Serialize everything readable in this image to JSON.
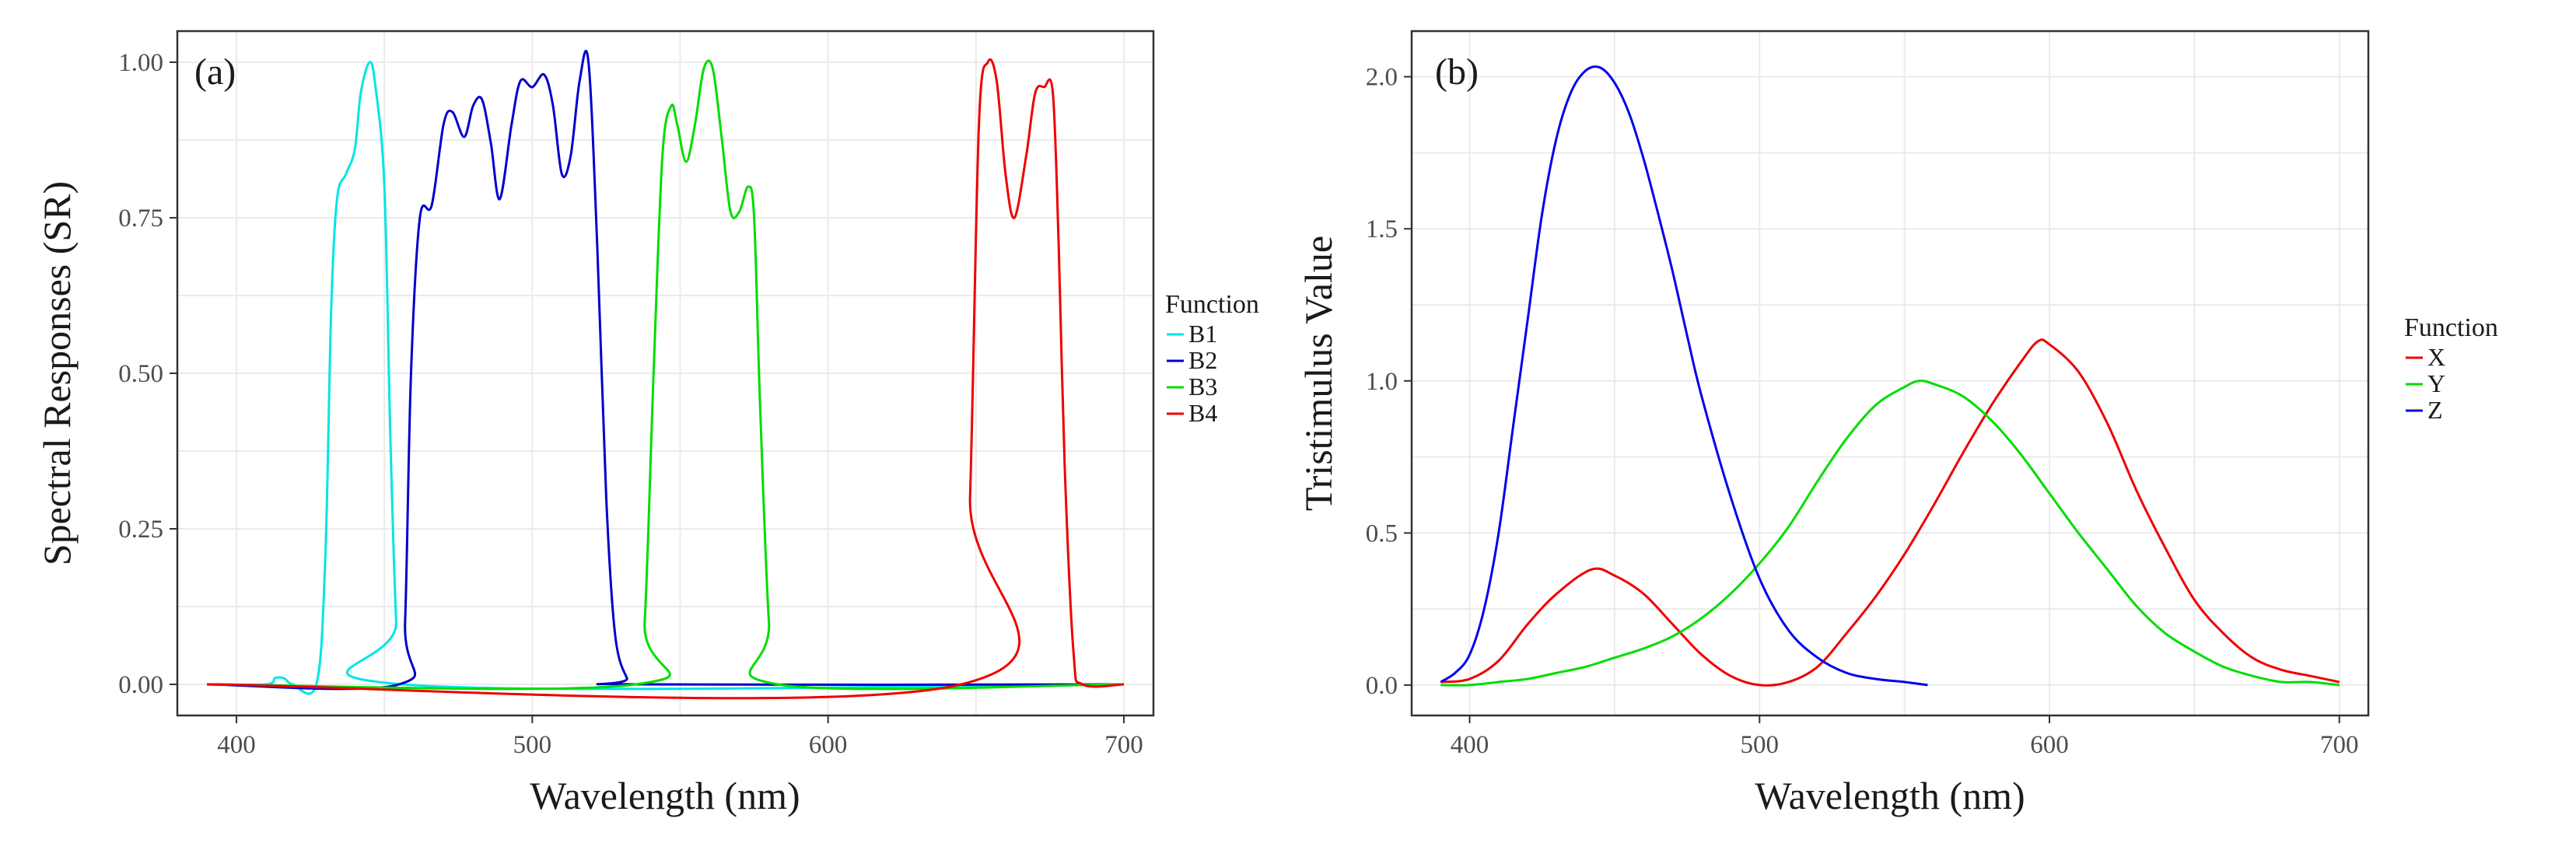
{
  "chart_data": [
    {
      "type": "line",
      "panel_label": "(a)",
      "xlabel": "Wavelength (nm)",
      "ylabel": "Spectral Responses (SR)",
      "xlim": [
        380,
        710
      ],
      "ylim": [
        -0.05,
        1.05
      ],
      "xticks": [
        400,
        500,
        600,
        700
      ],
      "xtick_labels": [
        "400",
        "500",
        "600",
        "700"
      ],
      "yticks": [
        0,
        0.25,
        0.5,
        0.75,
        1.0
      ],
      "ytick_labels": [
        "0.00",
        "0.25",
        "0.50",
        "0.75",
        "1.00"
      ],
      "legend": {
        "title": "Function",
        "position": "right"
      },
      "series": [
        {
          "name": "B1",
          "color": "#00e5e5",
          "x": [
            390,
            410,
            413,
            416,
            419,
            427,
            430,
            432,
            434,
            437,
            440,
            442,
            445,
            447,
            450,
            452,
            454,
            456,
            700
          ],
          "y": [
            0,
            0,
            0.01,
            0.01,
            0,
            0,
            0.2,
            0.6,
            0.78,
            0.82,
            0.86,
            0.95,
            1.0,
            0.96,
            0.8,
            0.4,
            0.1,
            0,
            0
          ]
        },
        {
          "name": "B2",
          "color": "#0000cc",
          "x": [
            390,
            455,
            457,
            459,
            462,
            466,
            470,
            473,
            477,
            480,
            483,
            486,
            489,
            493,
            496,
            500,
            504,
            507,
            510,
            513,
            516,
            519,
            522,
            525,
            528,
            532,
            535,
            700
          ],
          "y": [
            0,
            0,
            0.1,
            0.5,
            0.75,
            0.77,
            0.9,
            0.92,
            0.88,
            0.93,
            0.94,
            0.87,
            0.78,
            0.9,
            0.97,
            0.96,
            0.98,
            0.93,
            0.82,
            0.85,
            0.97,
            1.0,
            0.7,
            0.3,
            0.08,
            0.01,
            0,
            0
          ]
        },
        {
          "name": "B3",
          "color": "#00dd00",
          "x": [
            390,
            535,
            538,
            541,
            544,
            547,
            549,
            552,
            555,
            558,
            561,
            564,
            567,
            570,
            573,
            575,
            577,
            580,
            583,
            700
          ],
          "y": [
            0,
            0,
            0.1,
            0.5,
            0.85,
            0.93,
            0.9,
            0.84,
            0.9,
            0.99,
            0.99,
            0.88,
            0.76,
            0.76,
            0.8,
            0.75,
            0.45,
            0.1,
            0,
            0
          ]
        },
        {
          "name": "B4",
          "color": "#ee0000",
          "x": [
            390,
            645,
            648,
            651,
            654,
            657,
            660,
            663,
            667,
            670,
            673,
            676,
            678,
            680,
            683,
            686,
            700
          ],
          "y": [
            0,
            0,
            0.3,
            0.9,
            1.0,
            0.97,
            0.82,
            0.75,
            0.85,
            0.95,
            0.96,
            0.95,
            0.7,
            0.35,
            0.05,
            0,
            0
          ]
        }
      ]
    },
    {
      "type": "line",
      "panel_label": "(b)",
      "xlabel": "Wavelength (nm)",
      "ylabel": "Tristimulus Value",
      "xlim": [
        380,
        710
      ],
      "ylim": [
        -0.1,
        2.15
      ],
      "xticks": [
        400,
        500,
        600,
        700
      ],
      "xtick_labels": [
        "400",
        "500",
        "600",
        "700"
      ],
      "yticks": [
        0,
        0.5,
        1.0,
        1.5,
        2.0
      ],
      "ytick_labels": [
        "0.0",
        "0.5",
        "1.0",
        "1.5",
        "2.0"
      ],
      "legend": {
        "title": "Function",
        "position": "right"
      },
      "series": [
        {
          "name": "X",
          "color": "#ee0000",
          "x": [
            390,
            400,
            410,
            420,
            430,
            442,
            450,
            460,
            470,
            480,
            490,
            500,
            510,
            520,
            530,
            540,
            550,
            560,
            570,
            580,
            590,
            596,
            600,
            610,
            620,
            630,
            640,
            650,
            660,
            670,
            680,
            690,
            700
          ],
          "y": [
            0.01,
            0.02,
            0.08,
            0.2,
            0.3,
            0.38,
            0.36,
            0.3,
            0.2,
            0.1,
            0.03,
            0.0,
            0.01,
            0.06,
            0.17,
            0.29,
            0.43,
            0.59,
            0.76,
            0.92,
            1.06,
            1.13,
            1.12,
            1.03,
            0.86,
            0.64,
            0.45,
            0.28,
            0.17,
            0.09,
            0.05,
            0.03,
            0.01
          ]
        },
        {
          "name": "Y",
          "color": "#00dd00",
          "x": [
            390,
            400,
            410,
            420,
            430,
            440,
            450,
            460,
            470,
            480,
            490,
            500,
            510,
            520,
            530,
            540,
            550,
            555,
            560,
            570,
            580,
            590,
            600,
            610,
            620,
            630,
            640,
            650,
            660,
            670,
            680,
            690,
            700
          ],
          "y": [
            0.0,
            0.0,
            0.01,
            0.02,
            0.04,
            0.06,
            0.09,
            0.12,
            0.16,
            0.22,
            0.3,
            0.4,
            0.52,
            0.67,
            0.81,
            0.92,
            0.98,
            1.0,
            0.99,
            0.95,
            0.87,
            0.76,
            0.63,
            0.5,
            0.38,
            0.26,
            0.17,
            0.11,
            0.06,
            0.03,
            0.01,
            0.01,
            0.0
          ]
        },
        {
          "name": "Z",
          "color": "#0000ee",
          "x": [
            390,
            395,
            400,
            405,
            410,
            415,
            420,
            425,
            430,
            435,
            440,
            445,
            450,
            455,
            460,
            465,
            470,
            475,
            480,
            490,
            500,
            510,
            520,
            530,
            540,
            550,
            558
          ],
          "y": [
            0.01,
            0.04,
            0.1,
            0.25,
            0.5,
            0.85,
            1.2,
            1.55,
            1.8,
            1.95,
            2.02,
            2.03,
            1.98,
            1.88,
            1.73,
            1.55,
            1.36,
            1.15,
            0.95,
            0.62,
            0.35,
            0.18,
            0.09,
            0.04,
            0.02,
            0.01,
            0.0
          ]
        }
      ]
    }
  ]
}
